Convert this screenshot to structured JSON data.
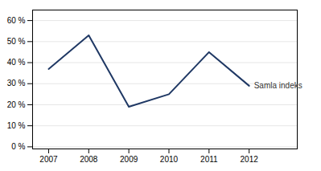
{
  "chart_data": {
    "type": "line",
    "x": [
      2007,
      2008,
      2009,
      2010,
      2011,
      2012
    ],
    "series": [
      {
        "name": "Samla indeks",
        "color": "#1f3864",
        "values": [
          37,
          53,
          19,
          25,
          45,
          29
        ]
      }
    ],
    "xlim": [
      2006.6,
      2013.2
    ],
    "xticks": [
      2007,
      2008,
      2009,
      2010,
      2011,
      2012
    ],
    "ylim": [
      -1,
      65
    ],
    "yticks": [
      {
        "value": 0,
        "label": "0 %"
      },
      {
        "value": 10,
        "label": "10 %"
      },
      {
        "value": 20,
        "label": "20 %"
      },
      {
        "value": 30,
        "label": "30 %"
      },
      {
        "value": 40,
        "label": "40 %"
      },
      {
        "value": 50,
        "label": "50 %"
      },
      {
        "value": 60,
        "label": "60 %"
      }
    ],
    "grid": true
  }
}
